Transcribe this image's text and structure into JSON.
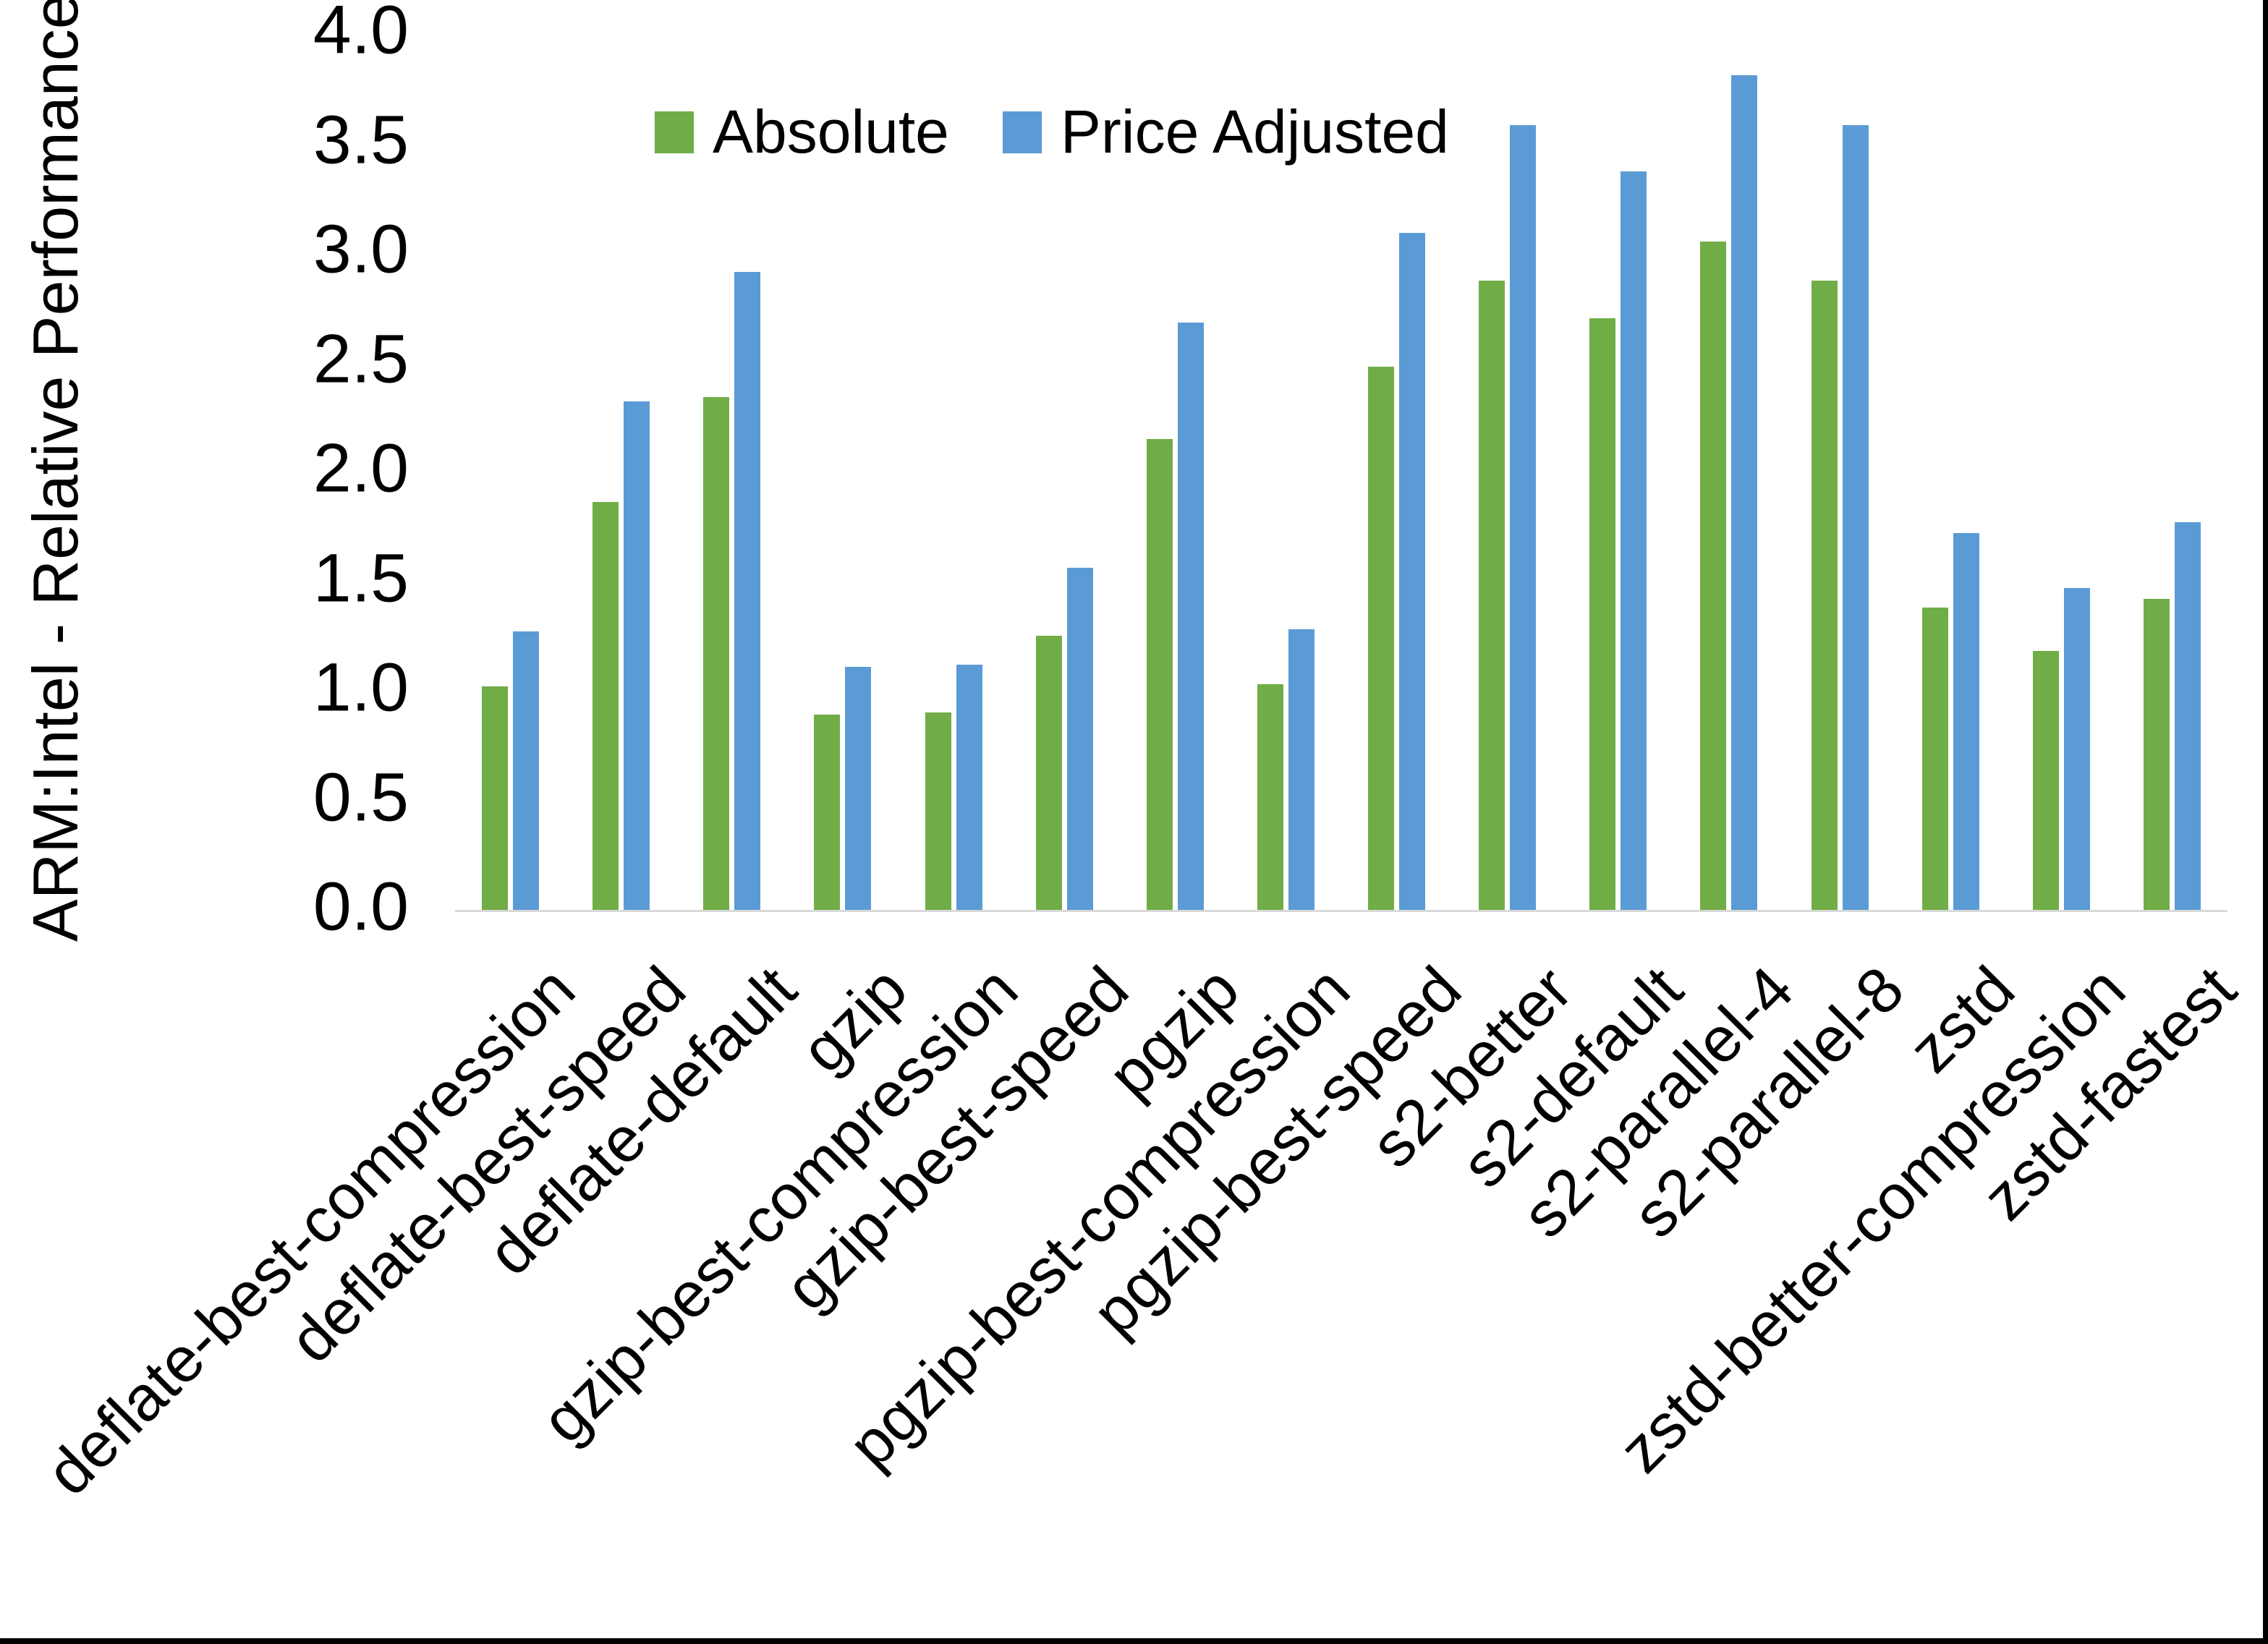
{
  "chart_data": {
    "type": "bar",
    "title": "",
    "xlabel": "",
    "ylabel": "ARM:Intel - Relative Performance",
    "ylim": [
      0,
      4
    ],
    "ytick_step": 0.5,
    "grid": false,
    "legend_position": "top-center",
    "plot_bg": "#ffffff",
    "axis_line_color": "#d9d9d9",
    "text_color": "#000000",
    "frame_color": "#000000",
    "categories": [
      "deflate-best-compression",
      "deflate-best-speed",
      "deflate-default",
      "gzip",
      "gzip-best-compression",
      "gzip-best-speed",
      "pgzip",
      "pgzip-best-compression",
      "pgzip-best-speed",
      "s2-better",
      "s2-default",
      "s2-parallel-4",
      "s2-parallel-8",
      "zstd",
      "zstd-better-compression",
      "zstd-fastest"
    ],
    "series": [
      {
        "name": "Absolute",
        "color": "#70AD47",
        "values": [
          1.02,
          1.86,
          2.34,
          0.89,
          0.9,
          1.25,
          2.15,
          1.03,
          2.48,
          2.87,
          2.7,
          3.05,
          2.87,
          1.38,
          1.18,
          1.42
        ]
      },
      {
        "name": "Price Adjusted",
        "color": "#5B9BD5",
        "values": [
          1.27,
          2.32,
          2.91,
          1.11,
          1.12,
          1.56,
          2.68,
          1.28,
          3.09,
          3.58,
          3.37,
          3.81,
          3.58,
          1.72,
          1.47,
          1.77
        ]
      }
    ]
  }
}
